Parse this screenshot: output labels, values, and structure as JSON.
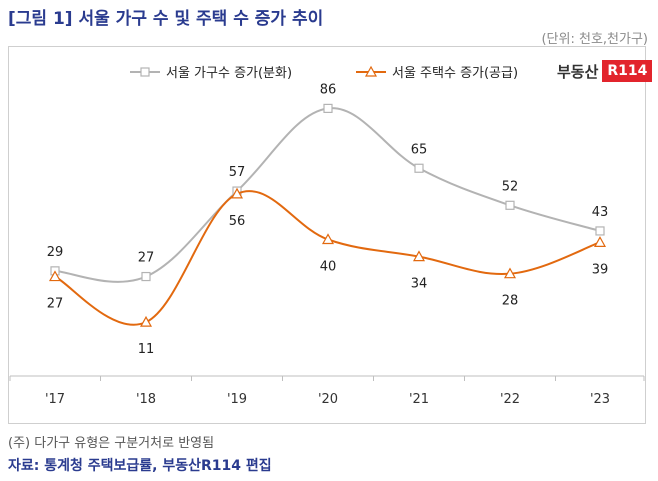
{
  "header": {
    "title": "[그림 1] 서울 가구 수 및 주택 수 증가 추이",
    "unit": "(단위: 천호,천가구)"
  },
  "brand": {
    "name": "부동산",
    "mark": "R114"
  },
  "footer": {
    "note": "(주) 다가구 유형은 구분거처로 반영됨",
    "source": "자료: 통계청 주택보급률, 부동산R114 편집"
  },
  "colors": {
    "households": "#b3b3b3",
    "housing": "#e2690f",
    "title": "#2a3b8f",
    "brand": "#e2242c"
  },
  "chart_data": {
    "type": "line",
    "title": "",
    "xlabel": "",
    "ylabel": "",
    "categories": [
      "'17",
      "'18",
      "'19",
      "'20",
      "'21",
      "'22",
      "'23"
    ],
    "series": [
      {
        "name": "서울 가구수 증가(분화)",
        "values": [
          29,
          27,
          57,
          86,
          65,
          52,
          43
        ],
        "marker": "square"
      },
      {
        "name": "서울 주택수 증가(공급)",
        "values": [
          27,
          11,
          56,
          40,
          34,
          28,
          39
        ],
        "marker": "triangle"
      }
    ],
    "legend_position": "top",
    "grid": false,
    "smooth": true
  }
}
